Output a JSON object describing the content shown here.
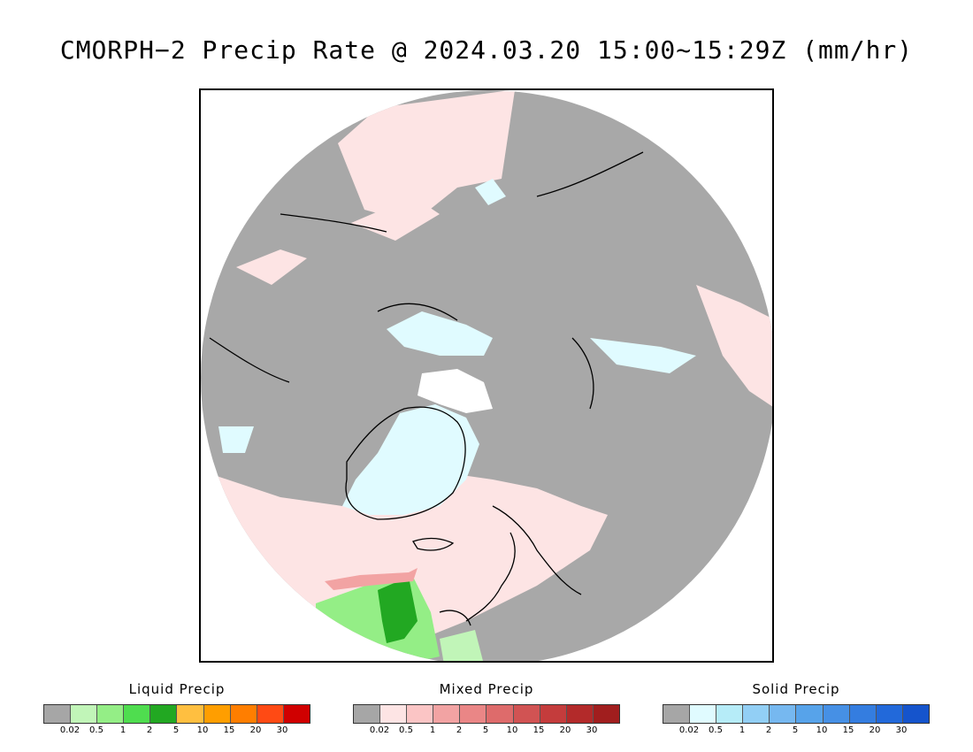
{
  "title": "CMORPH−2 Precip Rate @ 2024.03.20 15:00~15:29Z (mm/hr)",
  "map": {
    "projection": "north-polar-stereographic",
    "background_color": "#a8a8a8",
    "ice_color": "#ffffff",
    "coast_color": "#000000"
  },
  "legends": [
    {
      "title": "Liquid Precip",
      "colors": [
        "#a6a6a6",
        "#c1f5b8",
        "#94ee86",
        "#4fdd4f",
        "#22a822",
        "#ffbf40",
        "#ff9e00",
        "#ff7e00",
        "#ff4a14",
        "#d00000"
      ],
      "ticks": [
        "0.02",
        "0.5",
        "1",
        "2",
        "5",
        "10",
        "15",
        "20",
        "30"
      ]
    },
    {
      "title": "Mixed Precip",
      "colors": [
        "#a6a6a6",
        "#fde4e4",
        "#fbc5c5",
        "#f2a3a3",
        "#ea8686",
        "#de6b6b",
        "#d15353",
        "#c43c3c",
        "#b32a2a",
        "#a11e1e"
      ],
      "ticks": [
        "0.02",
        "0.5",
        "1",
        "2",
        "5",
        "10",
        "15",
        "20",
        "30"
      ]
    },
    {
      "title": "Solid Precip",
      "colors": [
        "#a6a6a6",
        "#e0fbff",
        "#b6ecf8",
        "#92cff5",
        "#76b8f0",
        "#57a3ea",
        "#4690e5",
        "#347de0",
        "#2269da",
        "#1554cc"
      ],
      "ticks": [
        "0.02",
        "0.5",
        "1",
        "2",
        "5",
        "10",
        "15",
        "20",
        "30"
      ]
    }
  ]
}
